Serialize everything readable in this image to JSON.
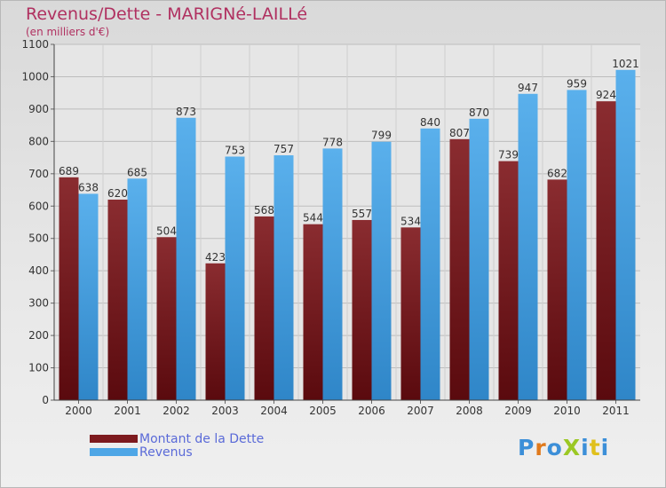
{
  "header": {
    "title": "Revenus/Dette - MARIGNé-LAILLé",
    "subtitle": "(en milliers d'€)"
  },
  "logo": {
    "text": "ProXiti"
  },
  "colors": {
    "dette": "#7d1a1e",
    "revenus": "#4ea6e6",
    "title": "#b03060",
    "legend_text": "#5a6ad8"
  },
  "chart_data": {
    "type": "bar",
    "title": "Revenus/Dette - MARIGNé-LAILLé",
    "subtitle": "(en milliers d'€)",
    "categories": [
      "2000",
      "2001",
      "2002",
      "2003",
      "2004",
      "2005",
      "2006",
      "2007",
      "2008",
      "2009",
      "2010",
      "2011"
    ],
    "series": [
      {
        "name": "Montant de la Dette",
        "values": [
          689,
          620,
          504,
          423,
          568,
          544,
          557,
          534,
          807,
          739,
          682,
          924
        ]
      },
      {
        "name": "Revenus",
        "values": [
          638,
          685,
          873,
          753,
          757,
          778,
          799,
          840,
          870,
          947,
          959,
          1021
        ]
      }
    ],
    "ylim": [
      0,
      1100
    ],
    "yticks": [
      0,
      100,
      200,
      300,
      400,
      500,
      600,
      700,
      800,
      900,
      1000,
      1100
    ],
    "grid": true,
    "legend_position": "bottom-left"
  }
}
